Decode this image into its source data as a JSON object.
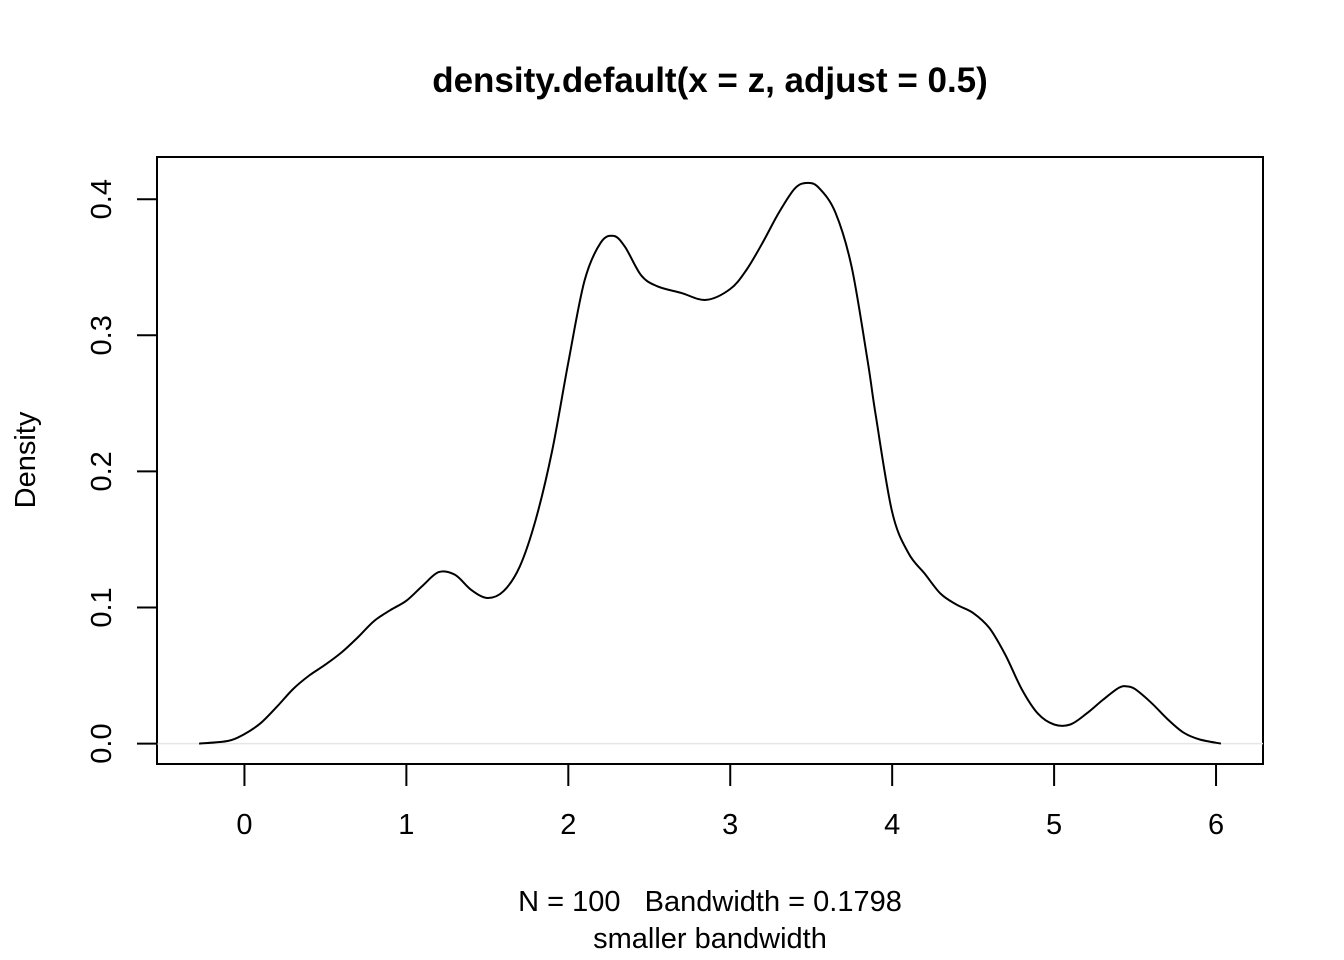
{
  "chart_data": {
    "type": "line",
    "title": "density.default(x = z, adjust = 0.5)",
    "xlabel": "N = 100   Bandwidth = 0.1798",
    "sublabel": "smaller bandwidth",
    "ylabel": "Density",
    "xlim": [
      -0.54,
      6.29
    ],
    "ylim": [
      -0.015,
      0.431
    ],
    "x_ticks": [
      "0",
      "1",
      "2",
      "3",
      "4",
      "5",
      "6"
    ],
    "y_ticks": [
      "0.0",
      "0.1",
      "0.2",
      "0.3",
      "0.4"
    ],
    "zero_line": true,
    "grid": false,
    "series": [
      {
        "line_color": "#000000",
        "points": [
          [
            -0.28,
            0.0
          ],
          [
            -0.1,
            0.002
          ],
          [
            0.0,
            0.007
          ],
          [
            0.1,
            0.015
          ],
          [
            0.2,
            0.027
          ],
          [
            0.3,
            0.04
          ],
          [
            0.4,
            0.05
          ],
          [
            0.5,
            0.058
          ],
          [
            0.6,
            0.067
          ],
          [
            0.7,
            0.078
          ],
          [
            0.8,
            0.09
          ],
          [
            0.9,
            0.098
          ],
          [
            1.0,
            0.105
          ],
          [
            1.1,
            0.116
          ],
          [
            1.2,
            0.126
          ],
          [
            1.3,
            0.124
          ],
          [
            1.4,
            0.113
          ],
          [
            1.5,
            0.107
          ],
          [
            1.6,
            0.112
          ],
          [
            1.7,
            0.13
          ],
          [
            1.8,
            0.165
          ],
          [
            1.9,
            0.215
          ],
          [
            2.0,
            0.28
          ],
          [
            2.1,
            0.34
          ],
          [
            2.2,
            0.368
          ],
          [
            2.28,
            0.373
          ],
          [
            2.35,
            0.365
          ],
          [
            2.45,
            0.344
          ],
          [
            2.55,
            0.336
          ],
          [
            2.7,
            0.331
          ],
          [
            2.85,
            0.326
          ],
          [
            3.0,
            0.334
          ],
          [
            3.1,
            0.348
          ],
          [
            3.2,
            0.368
          ],
          [
            3.3,
            0.39
          ],
          [
            3.4,
            0.408
          ],
          [
            3.48,
            0.412
          ],
          [
            3.55,
            0.408
          ],
          [
            3.65,
            0.39
          ],
          [
            3.75,
            0.35
          ],
          [
            3.85,
            0.28
          ],
          [
            3.9,
            0.24
          ],
          [
            4.0,
            0.17
          ],
          [
            4.1,
            0.14
          ],
          [
            4.2,
            0.125
          ],
          [
            4.3,
            0.11
          ],
          [
            4.4,
            0.102
          ],
          [
            4.5,
            0.096
          ],
          [
            4.6,
            0.085
          ],
          [
            4.7,
            0.065
          ],
          [
            4.8,
            0.04
          ],
          [
            4.9,
            0.022
          ],
          [
            5.0,
            0.014
          ],
          [
            5.1,
            0.014
          ],
          [
            5.2,
            0.022
          ],
          [
            5.3,
            0.032
          ],
          [
            5.4,
            0.041
          ],
          [
            5.45,
            0.042
          ],
          [
            5.5,
            0.04
          ],
          [
            5.6,
            0.03
          ],
          [
            5.7,
            0.018
          ],
          [
            5.8,
            0.008
          ],
          [
            5.9,
            0.003
          ],
          [
            6.03,
            0.0
          ]
        ]
      }
    ]
  }
}
